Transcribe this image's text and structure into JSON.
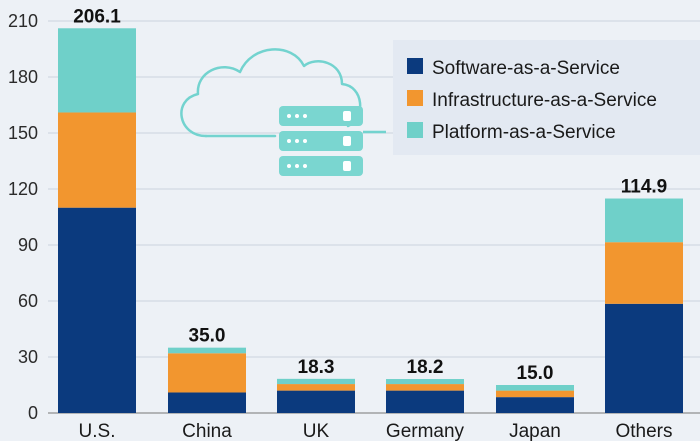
{
  "chart_data": {
    "type": "bar",
    "stacked": true,
    "title": "",
    "xlabel": "",
    "ylabel": "",
    "ylim": [
      0,
      210
    ],
    "yticks": [
      0,
      30,
      60,
      90,
      120,
      150,
      180,
      210
    ],
    "categories": [
      "U.S.",
      "China",
      "UK",
      "Germany",
      "Japan",
      "Others"
    ],
    "totals": [
      "206.1",
      "35.0",
      "18.3",
      "18.2",
      "15.0",
      "114.9"
    ],
    "series": [
      {
        "name": "Software-as-a-Service",
        "color": "#0b3a7e",
        "values": [
          110.0,
          11.0,
          12.0,
          12.0,
          8.5,
          58.5
        ]
      },
      {
        "name": "Infrastructure-as-a-Service",
        "color": "#f2962f",
        "values": [
          51.0,
          21.0,
          3.5,
          3.5,
          3.5,
          33.0
        ]
      },
      {
        "name": "Platform-as-a-Service",
        "color": "#6fd0c9",
        "values": [
          45.1,
          3.0,
          2.8,
          2.7,
          3.0,
          23.4
        ]
      }
    ],
    "legend_position": "top-right",
    "grid": true
  },
  "illustration": {
    "cloud_icon": "cloud-icon",
    "server_icon": "server-icon"
  }
}
